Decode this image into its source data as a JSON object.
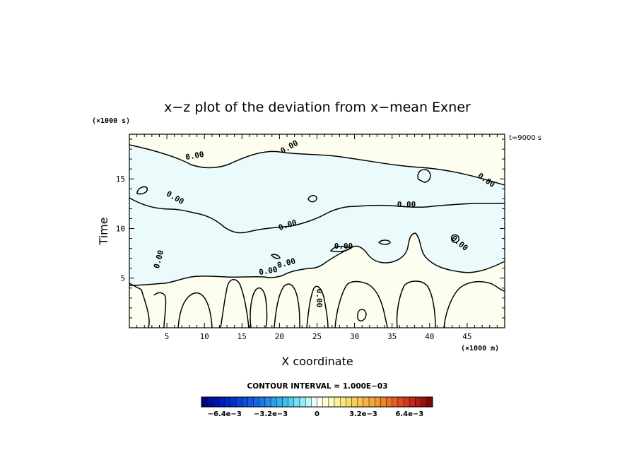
{
  "chart_data": {
    "type": "contour",
    "title": "x−z plot of the deviation from x−mean Exner",
    "xlabel": "X coordinate",
    "ylabel": "Time",
    "x_unit": "(×1000 m)",
    "y_unit": "(×1000 s)",
    "time_label": "t=9000 s",
    "xlim": [
      0,
      50
    ],
    "ylim": [
      0,
      19.5
    ],
    "x_ticks": [
      5,
      10,
      15,
      20,
      25,
      30,
      35,
      40,
      45
    ],
    "y_ticks": [
      5,
      10,
      15
    ],
    "contour_level": 0.0,
    "contour_label": "0.00",
    "contour_interval_text": "CONTOUR INTERVAL = 1.000E−03",
    "colorbar": {
      "min": -0.008,
      "max": 0.008,
      "tick_labels": [
        "−6.4e−3",
        "−3.2e−3",
        "0",
        "3.2e−3",
        "6.4e−3"
      ],
      "tick_values": [
        -0.0064,
        -0.0032,
        0,
        0.0032,
        0.0064
      ]
    },
    "fill_colors": {
      "negative": "#ebfbfb",
      "positive": "#fefef0"
    },
    "grid": false
  }
}
